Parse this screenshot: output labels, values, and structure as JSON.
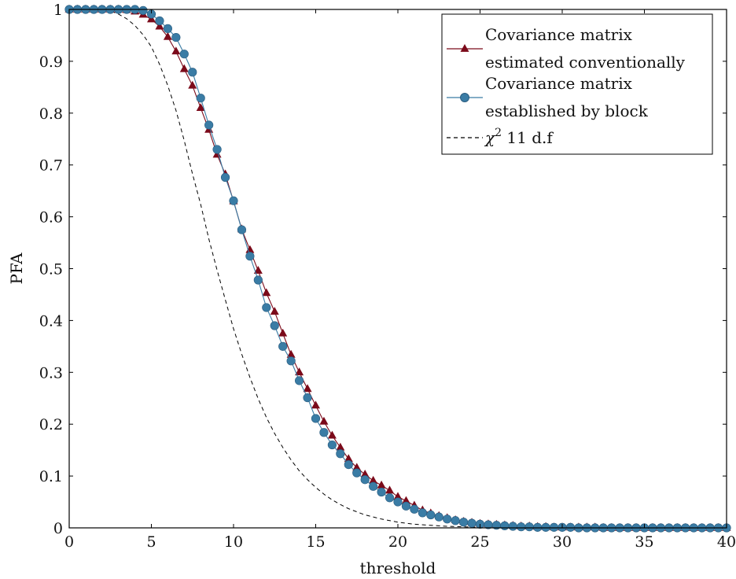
{
  "chart_data": {
    "type": "line",
    "title": "",
    "xlabel": "threshold",
    "ylabel": "PFA",
    "xlim": [
      0,
      40
    ],
    "ylim": [
      0,
      1
    ],
    "xticks": [
      "0",
      "5",
      "10",
      "15",
      "20",
      "25",
      "30",
      "35",
      "40"
    ],
    "yticks": [
      "0",
      "0.1",
      "0.2",
      "0.3",
      "0.4",
      "0.5",
      "0.6",
      "0.7",
      "0.8",
      "0.9",
      "1"
    ],
    "grid": false,
    "legend_position": "top-right",
    "series": [
      {
        "name": "Covariance matrix estimated conventionally",
        "legend_lines": [
          "Covariance matrix",
          "estimated conventionally"
        ],
        "color": "#7b0a1a",
        "marker": "triangle",
        "x": [
          0,
          0.5,
          1,
          1.5,
          2,
          2.5,
          3,
          3.5,
          4,
          4.5,
          5,
          5.5,
          6,
          6.5,
          7,
          7.5,
          8,
          8.5,
          9,
          9.5,
          10,
          10.5,
          11,
          11.5,
          12,
          12.5,
          13,
          13.5,
          14,
          14.5,
          15,
          15.5,
          16,
          16.5,
          17,
          17.5,
          18,
          18.5,
          19,
          19.5,
          20,
          20.5,
          21,
          21.5,
          22,
          22.5,
          23,
          23.5,
          24,
          24.5,
          25,
          25.5,
          26,
          26.5,
          27,
          27.5,
          28,
          28.5,
          29,
          29.5,
          30,
          30.5,
          31,
          31.5,
          32,
          32.5,
          33,
          33.5,
          34,
          34.5,
          35,
          35.5,
          36,
          36.5,
          37,
          37.5,
          38,
          38.5,
          39,
          39.5,
          40
        ],
        "y": [
          1,
          1,
          1,
          1,
          1,
          1,
          1,
          0.999,
          0.996,
          0.99,
          0.981,
          0.967,
          0.947,
          0.919,
          0.885,
          0.853,
          0.81,
          0.768,
          0.72,
          0.682,
          0.63,
          0.576,
          0.536,
          0.496,
          0.453,
          0.417,
          0.375,
          0.334,
          0.3,
          0.268,
          0.236,
          0.205,
          0.178,
          0.155,
          0.133,
          0.116,
          0.103,
          0.091,
          0.082,
          0.072,
          0.06,
          0.052,
          0.043,
          0.034,
          0.028,
          0.023,
          0.019,
          0.015,
          0.012,
          0.01,
          0.008,
          0.007,
          0.006,
          0.005,
          0.004,
          0.003,
          0.003,
          0.002,
          0.002,
          0.001,
          0.001,
          0.001,
          0.001,
          0.001,
          0.001,
          0,
          0,
          0,
          0,
          0,
          0,
          0,
          0,
          0,
          0,
          0,
          0,
          0,
          0,
          0,
          0
        ]
      },
      {
        "name": "Covariance matrix established by block",
        "legend_lines": [
          "Covariance matrix",
          "established by block"
        ],
        "color": "#3a7ca5",
        "marker": "circle",
        "x": [
          0,
          0.5,
          1,
          1.5,
          2,
          2.5,
          3,
          3.5,
          4,
          4.5,
          5,
          5.5,
          6,
          6.5,
          7,
          7.5,
          8,
          8.5,
          9,
          9.5,
          10,
          10.5,
          11,
          11.5,
          12,
          12.5,
          13,
          13.5,
          14,
          14.5,
          15,
          15.5,
          16,
          16.5,
          17,
          17.5,
          18,
          18.5,
          19,
          19.5,
          20,
          20.5,
          21,
          21.5,
          22,
          22.5,
          23,
          23.5,
          24,
          24.5,
          25,
          25.5,
          26,
          26.5,
          27,
          27.5,
          28,
          28.5,
          29,
          29.5,
          30,
          30.5,
          31,
          31.5,
          32,
          32.5,
          33,
          33.5,
          34,
          34.5,
          35,
          35.5,
          36,
          36.5,
          37,
          37.5,
          38,
          38.5,
          39,
          39.5,
          40
        ],
        "y": [
          1,
          1,
          1,
          1,
          1,
          1,
          1,
          1,
          1,
          0.998,
          0.991,
          0.978,
          0.963,
          0.946,
          0.914,
          0.879,
          0.829,
          0.777,
          0.73,
          0.676,
          0.631,
          0.575,
          0.524,
          0.478,
          0.425,
          0.39,
          0.35,
          0.322,
          0.284,
          0.251,
          0.211,
          0.184,
          0.16,
          0.143,
          0.122,
          0.106,
          0.093,
          0.08,
          0.069,
          0.058,
          0.05,
          0.042,
          0.036,
          0.029,
          0.025,
          0.021,
          0.017,
          0.014,
          0.011,
          0.009,
          0.007,
          0.006,
          0.005,
          0.004,
          0.003,
          0.002,
          0.002,
          0.001,
          0.001,
          0.001,
          0.001,
          0.001,
          0,
          0,
          0,
          0,
          0,
          0,
          0,
          0,
          0,
          0,
          0,
          0,
          0,
          0,
          0,
          0,
          0,
          0,
          0
        ]
      },
      {
        "name": "χ² 11 d.f",
        "legend_main": "χ",
        "legend_sup": "2",
        "legend_rest": " 11 d.f",
        "color": "#000000",
        "dash": "dashed",
        "marker": "none",
        "x": [
          0,
          1,
          2,
          2.5,
          3,
          3.5,
          4,
          4.5,
          5,
          5.5,
          6,
          6.5,
          7,
          7.5,
          8,
          8.5,
          9,
          9.5,
          10,
          10.5,
          11,
          11.5,
          12,
          12.5,
          13,
          13.5,
          14,
          14.5,
          15,
          15.5,
          16,
          16.5,
          17,
          17.5,
          18,
          18.5,
          19,
          19.5,
          20,
          21,
          22,
          23,
          24,
          25,
          26,
          27,
          28,
          30,
          32,
          35,
          40
        ],
        "y": [
          1,
          1,
          0.999,
          0.997,
          0.991,
          0.982,
          0.969,
          0.951,
          0.928,
          0.894,
          0.853,
          0.805,
          0.747,
          0.683,
          0.624,
          0.557,
          0.497,
          0.44,
          0.384,
          0.335,
          0.29,
          0.249,
          0.213,
          0.182,
          0.155,
          0.131,
          0.11,
          0.093,
          0.078,
          0.065,
          0.054,
          0.045,
          0.037,
          0.031,
          0.025,
          0.021,
          0.017,
          0.014,
          0.011,
          0.007,
          0.005,
          0.003,
          0.002,
          0.001,
          0.001,
          0,
          0,
          0,
          0,
          0,
          0
        ]
      }
    ]
  }
}
